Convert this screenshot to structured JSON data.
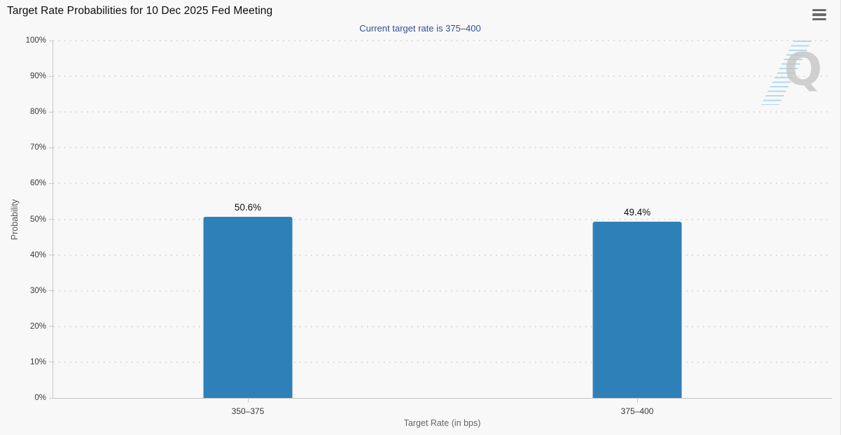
{
  "header": {
    "title": "Target Rate Probabilities for 10 Dec 2025 Fed Meeting"
  },
  "watermark": {
    "letter": "Q"
  },
  "chart_data": {
    "type": "bar",
    "title": "Target Rate Probabilities for 10 Dec 2025 Fed Meeting",
    "subtitle": "Current target rate is 375–400",
    "categories": [
      "350–375",
      "375–400"
    ],
    "values": [
      50.6,
      49.4
    ],
    "value_labels": [
      "50.6%",
      "49.4%"
    ],
    "xlabel": "Target Rate (in bps)",
    "ylabel": "Probability",
    "ylim": [
      0,
      100
    ],
    "ytick_step": 10,
    "ytick_labels": [
      "0%",
      "10%",
      "20%",
      "30%",
      "40%",
      "50%",
      "60%",
      "70%",
      "80%",
      "90%",
      "100%"
    ],
    "grid": "horizontal-dotted",
    "legend": "none",
    "bar_color": "#2e80b9",
    "subtitle_color": "#2f5096"
  }
}
